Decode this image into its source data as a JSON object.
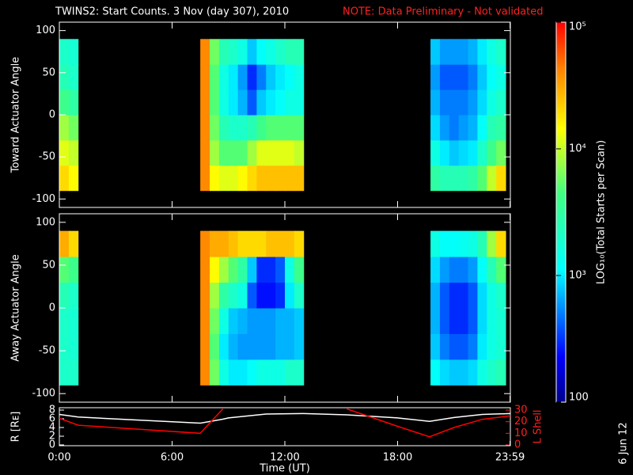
{
  "stamp": "6 Jun 12",
  "chart_data": [
    {
      "type": "heatmap",
      "title": "TWINS2: Start Counts.  3 Nov (day 307), 2010",
      "note": "NOTE: Data Preliminary - Not validated",
      "ylabel": "Toward Actuator Angle",
      "xlim": [
        0,
        24
      ],
      "ylim": [
        -110,
        110
      ],
      "yticks": [
        -100,
        -50,
        0,
        50,
        100
      ],
      "zlim": [
        100,
        100000
      ],
      "zscale": "log",
      "colorbar": {
        "label": "LOG₁₀(Total Starts per Scan)",
        "ticks": [
          {
            "value": 100000,
            "label": "10⁵"
          },
          {
            "value": 10000,
            "label": "10⁴"
          },
          {
            "value": 1000,
            "label": "10³"
          },
          100
        ]
      },
      "blocks": [
        {
          "xbins": [
            0,
            0.5,
            1
          ],
          "ybins": [
            -90,
            -60,
            -30,
            0,
            30,
            60,
            90
          ],
          "values": [
            [
              20000,
              15000
            ],
            [
              12000,
              10000
            ],
            [
              8000,
              6000
            ],
            [
              4000,
              3000
            ],
            [
              2500,
              2000
            ],
            [
              2000,
              1800
            ]
          ]
        },
        {
          "xbins": [
            7.5,
            8,
            8.5,
            9,
            9.5,
            10,
            10.5,
            11,
            11.5,
            12,
            12.5,
            13
          ],
          "ybins": [
            -90,
            -60,
            -30,
            0,
            30,
            60,
            90
          ],
          "values": [
            [
              40000,
              15000,
              12000,
              12000,
              15000,
              20000,
              25000,
              25000,
              25000,
              25000,
              25000
            ],
            [
              40000,
              8000,
              5000,
              5000,
              5000,
              8000,
              12000,
              12000,
              12000,
              12000,
              10000
            ],
            [
              40000,
              6000,
              2500,
              2000,
              2000,
              2500,
              4000,
              5000,
              5000,
              5000,
              5000
            ],
            [
              40000,
              5000,
              1500,
              1000,
              700,
              400,
              800,
              1000,
              1200,
              1500,
              1500
            ],
            [
              40000,
              5000,
              1500,
              1000,
              600,
              300,
              500,
              800,
              1000,
              1200,
              1500
            ],
            [
              40000,
              6000,
              2500,
              2000,
              1500,
              800,
              1200,
              1500,
              2000,
              2500,
              2500
            ]
          ]
        },
        {
          "xbins": [
            19.75,
            20.25,
            20.75,
            21.25,
            21.75,
            22.25,
            22.75,
            23.25,
            23.75
          ],
          "ybins": [
            -90,
            -60,
            -30,
            0,
            30,
            60,
            90
          ],
          "values": [
            [
              3000,
              2500,
              2500,
              2500,
              3000,
              5000,
              10000,
              20000
            ],
            [
              1500,
              1000,
              800,
              900,
              1000,
              2000,
              4000,
              6000
            ],
            [
              900,
              600,
              500,
              600,
              700,
              1200,
              2500,
              3000
            ],
            [
              700,
              500,
              500,
              500,
              600,
              900,
              1500,
              2000
            ],
            [
              600,
              400,
              400,
              400,
              500,
              800,
              1200,
              1500
            ],
            [
              800,
              600,
              600,
              600,
              700,
              1000,
              1500,
              2000
            ]
          ]
        }
      ]
    },
    {
      "type": "heatmap",
      "ylabel": "Away Actuator Angle",
      "xlim": [
        0,
        24
      ],
      "ylim": [
        -110,
        110
      ],
      "yticks": [
        -100,
        -50,
        0,
        50,
        100
      ],
      "zlim": [
        100,
        100000
      ],
      "zscale": "log",
      "blocks": [
        {
          "xbins": [
            0,
            0.5,
            1
          ],
          "ybins": [
            -90,
            -60,
            -30,
            0,
            30,
            60,
            90
          ],
          "values": [
            [
              2000,
              2000
            ],
            [
              2000,
              1800
            ],
            [
              2000,
              1800
            ],
            [
              2500,
              2000
            ],
            [
              5000,
              4000
            ],
            [
              30000,
              20000
            ]
          ]
        },
        {
          "xbins": [
            7.5,
            8,
            8.5,
            9,
            9.5,
            10,
            10.5,
            11,
            11.5,
            12,
            12.5,
            13
          ],
          "ybins": [
            -90,
            -60,
            -30,
            0,
            30,
            60,
            90
          ],
          "values": [
            [
              40000,
              6000,
              1500,
              1000,
              1000,
              1200,
              1500,
              1500,
              1500,
              2000,
              2000
            ],
            [
              40000,
              5000,
              1000,
              700,
              600,
              600,
              600,
              600,
              700,
              700,
              800
            ],
            [
              40000,
              6000,
              1500,
              800,
              700,
              600,
              600,
              600,
              700,
              700,
              800
            ],
            [
              40000,
              8000,
              3000,
              2000,
              1500,
              400,
              250,
              250,
              300,
              1000,
              2000
            ],
            [
              40000,
              15000,
              8000,
              5000,
              3000,
              800,
              300,
              300,
              400,
              1500,
              4000
            ],
            [
              40000,
              30000,
              30000,
              25000,
              20000,
              20000,
              20000,
              25000,
              25000,
              25000,
              20000
            ]
          ]
        },
        {
          "xbins": [
            19.75,
            20.25,
            20.75,
            21.25,
            21.75,
            22.25,
            22.75,
            23.25,
            23.75
          ],
          "ybins": [
            -90,
            -60,
            -30,
            0,
            30,
            60,
            90
          ],
          "values": [
            [
              1200,
              900,
              800,
              800,
              900,
              1500,
              2000,
              2500
            ],
            [
              800,
              500,
              400,
              400,
              500,
              1000,
              1500,
              1800
            ],
            [
              700,
              400,
              300,
              300,
              400,
              900,
              1500,
              1800
            ],
            [
              700,
              400,
              300,
              300,
              400,
              900,
              1500,
              2000
            ],
            [
              900,
              600,
              500,
              500,
              600,
              1200,
              2500,
              5000
            ],
            [
              1500,
              1200,
              1200,
              1300,
              1500,
              2500,
              8000,
              20000
            ]
          ]
        }
      ]
    },
    {
      "type": "line",
      "xlabel": "Time (UT)",
      "xlim": [
        0,
        24
      ],
      "xticks": [
        {
          "value": 0,
          "label": "0:00"
        },
        {
          "value": 6,
          "label": "6:00"
        },
        {
          "value": 12,
          "label": "12:00"
        },
        {
          "value": 18,
          "label": "18:00"
        },
        {
          "value": 23.983,
          "label": "23:59"
        }
      ],
      "ylabel": "R [Rᴇ]",
      "ylim": [
        0,
        8
      ],
      "yticks": [
        0,
        2,
        4,
        6,
        8
      ],
      "y2label": "L Shell",
      "y2lim": [
        0,
        30
      ],
      "y2ticks": [
        0,
        10,
        20,
        30
      ],
      "x": [
        0,
        1,
        7.5,
        8.7,
        9,
        11,
        13,
        15.3,
        18,
        19.7,
        21,
        22.5,
        24
      ],
      "series": [
        {
          "color": "#ffffff",
          "values": [
            7,
            6.4,
            5,
            5.9,
            6.2,
            7.1,
            7.2,
            6.9,
            6.2,
            5.4,
            6.3,
            7,
            7.2
          ]
        },
        {
          "color": "#ff0000",
          "axis": "y2",
          "values": [
            23,
            17,
            10,
            31,
            null,
            null,
            null,
            31,
            16,
            7,
            15,
            22,
            25
          ]
        }
      ]
    }
  ]
}
